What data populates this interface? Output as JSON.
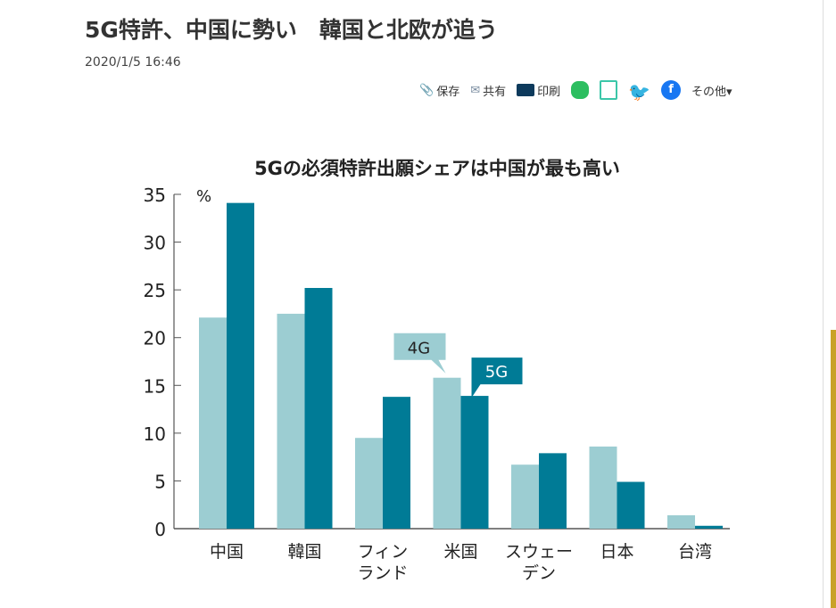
{
  "article": {
    "title": "5G特許、中国に勢い　韓国と北欧が追う",
    "date": "2020/1/5 16:46"
  },
  "toolbar": {
    "save": "保存",
    "share": "共有",
    "print": "印刷",
    "more": "その他▾"
  },
  "chart_data": {
    "type": "bar",
    "title": "5Gの必須特許出願シェアは中国が最も高い",
    "ylabel": "%",
    "ylim": [
      0,
      35
    ],
    "yticks": [
      "0",
      "5",
      "10",
      "15",
      "20",
      "25",
      "30",
      "35"
    ],
    "categories": [
      [
        "中国"
      ],
      [
        "韓国"
      ],
      [
        "フィン",
        "ランド"
      ],
      [
        "米国"
      ],
      [
        "スウェー",
        "デン"
      ],
      [
        "日本"
      ],
      [
        "台湾"
      ]
    ],
    "series": [
      {
        "name": "4G",
        "color": "#9ccdd2",
        "values": [
          22.1,
          22.5,
          9.5,
          15.8,
          6.7,
          8.6,
          1.4
        ]
      },
      {
        "name": "5G",
        "color": "#007b96",
        "values": [
          34.1,
          25.2,
          13.8,
          13.9,
          7.9,
          4.9,
          0.3
        ]
      }
    ]
  }
}
